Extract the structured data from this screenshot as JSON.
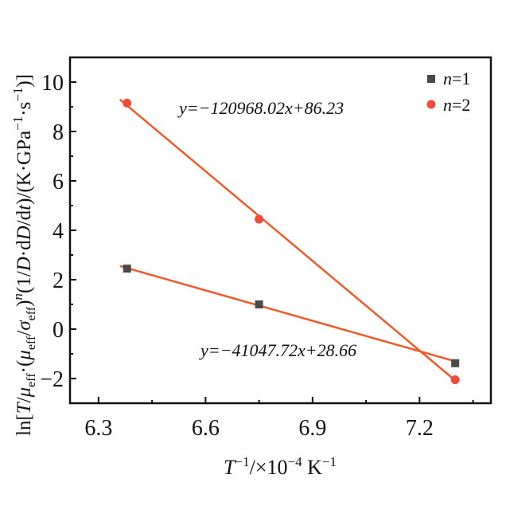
{
  "chart_data": {
    "type": "scatter",
    "title": "",
    "xlabel": "T^-1/×10^-4 K^-1",
    "ylabel": "ln[T/μeff·(μeff/σeff)^n(1/D·dD/dt)/(K·GPa^-1·s^-1)]",
    "xlim": [
      6.22,
      7.4
    ],
    "ylim": [
      -3,
      11
    ],
    "xticks": [
      6.3,
      6.6,
      6.9,
      7.2
    ],
    "xtick_labels": [
      "6.3",
      "6.6",
      "6.9",
      "7.2"
    ],
    "yticks": [
      -2,
      0,
      2,
      4,
      6,
      8,
      10
    ],
    "ytick_labels": [
      "-2",
      "0",
      "2",
      "4",
      "6",
      "8",
      "10"
    ],
    "grid": false,
    "legend": "top-right",
    "series": [
      {
        "name": "n=1",
        "marker": "square",
        "color": "#4a4a4a",
        "x": [
          6.38,
          6.75,
          7.3
        ],
        "y": [
          2.45,
          1.0,
          -1.38
        ],
        "fit": {
          "slope": -4.104772,
          "intercept": 28.66,
          "label": "y=−41047.72x+28.66"
        }
      },
      {
        "name": "n=2",
        "marker": "circle",
        "color": "#f04c3c",
        "x": [
          6.38,
          6.75,
          7.3
        ],
        "y": [
          9.15,
          4.45,
          -2.05
        ],
        "fit": {
          "slope": -12.096802,
          "intercept": 86.23,
          "label": "y=−120968.02x+86.23"
        }
      }
    ],
    "fit_color": "#f05a28"
  }
}
